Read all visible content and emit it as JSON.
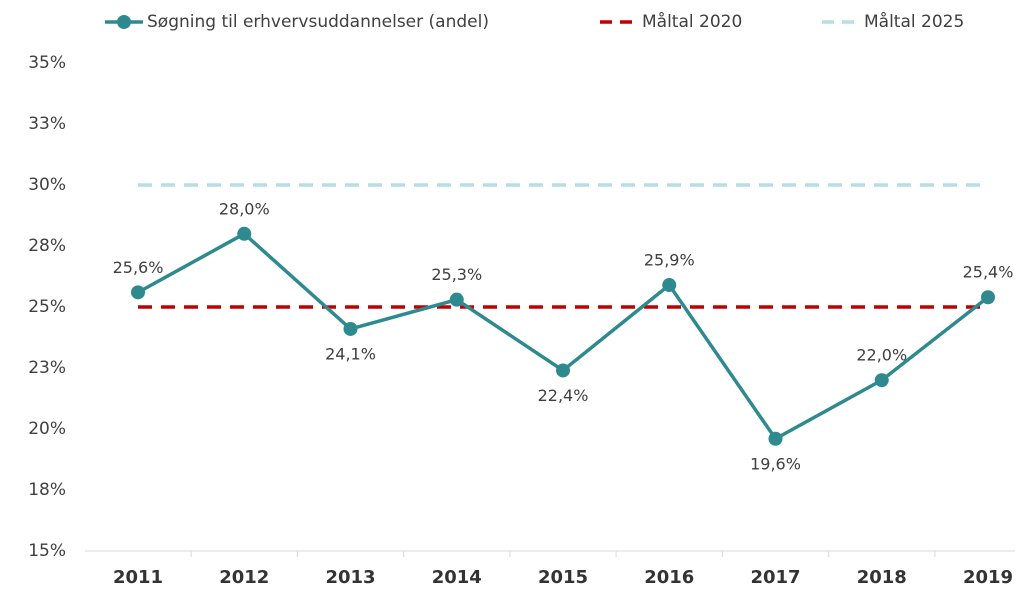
{
  "chart_data": {
    "type": "line",
    "categories": [
      "2011",
      "2012",
      "2013",
      "2014",
      "2015",
      "2016",
      "2017",
      "2018",
      "2019"
    ],
    "series": [
      {
        "name": "Søgning til erhvervsuddannelser (andel)",
        "color": "#2e8a8f",
        "style": "solid-marker",
        "values": [
          25.6,
          28.0,
          24.1,
          25.3,
          22.4,
          25.9,
          19.6,
          22.0,
          25.4
        ],
        "value_labels": [
          "25,6%",
          "28,0%",
          "24,1%",
          "25,3%",
          "22,4%",
          "25,9%",
          "19,6%",
          "22,0%",
          "25,4%"
        ]
      },
      {
        "name": "Måltal 2020",
        "color": "#c00000",
        "style": "dashed",
        "values": [
          25,
          25,
          25,
          25,
          25,
          25,
          25,
          25,
          25
        ]
      },
      {
        "name": "Måltal 2025",
        "color": "#b7dde8",
        "style": "dashed",
        "values": [
          30,
          30,
          30,
          30,
          30,
          30,
          30,
          30,
          30
        ]
      }
    ],
    "ylim": [
      15,
      35
    ],
    "yticks": [
      {
        "value": 15,
        "label": "15%"
      },
      {
        "value": 17.5,
        "label": "18%"
      },
      {
        "value": 20,
        "label": "20%"
      },
      {
        "value": 22.5,
        "label": "23%"
      },
      {
        "value": 25,
        "label": "25%"
      },
      {
        "value": 27.5,
        "label": "28%"
      },
      {
        "value": 30,
        "label": "30%"
      },
      {
        "value": 32.5,
        "label": "33%"
      },
      {
        "value": 35,
        "label": "35%"
      }
    ],
    "legend": "top",
    "grid": false
  }
}
